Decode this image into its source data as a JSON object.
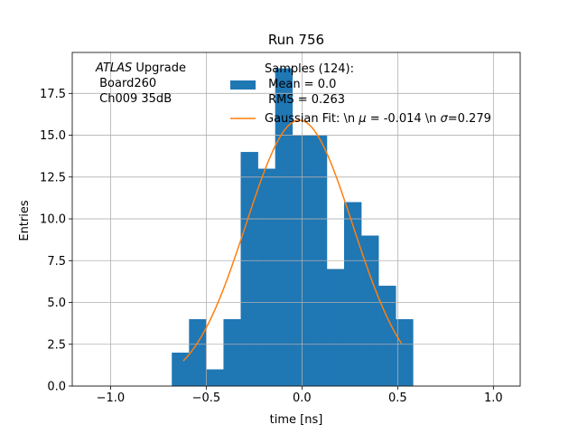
{
  "chart_data": {
    "type": "histogram",
    "title": "Run 756",
    "xlabel": "time [ns]",
    "ylabel": "Entries",
    "xlim": [
      -1.2,
      1.14
    ],
    "ylim": [
      0,
      19.95
    ],
    "xticks": [
      -1.0,
      -0.5,
      0.0,
      0.5,
      1.0
    ],
    "xtick_labels": [
      "−1.0",
      "−0.5",
      "0.0",
      "0.5",
      "1.0"
    ],
    "yticks": [
      0.0,
      2.5,
      5.0,
      7.5,
      10.0,
      12.5,
      15.0,
      17.5
    ],
    "ytick_labels": [
      "0.0",
      "2.5",
      "5.0",
      "7.5",
      "10.0",
      "12.5",
      "15.0",
      "17.5"
    ],
    "grid": true,
    "annotation": {
      "line1_italic": "ATLAS",
      "line1_rest": " Upgrade",
      "line2": " Board260",
      "line3": " Ch009 35dB"
    },
    "legend": {
      "placement": "upper-center",
      "hist_label_lines": [
        "Samples (124):",
        " Mean = 0.0",
        " RMS = 0.263"
      ],
      "fit_label_parts": [
        "Gaussian Fit: \\n ",
        "μ",
        " = -0.014 \\n ",
        "σ",
        "=0.279"
      ]
    },
    "histogram": {
      "bin_edges": [
        -0.68,
        -0.59,
        -0.5,
        -0.41,
        -0.32,
        -0.23,
        -0.14,
        -0.05,
        0.04,
        0.13,
        0.22,
        0.31,
        0.4,
        0.49,
        0.58
      ],
      "counts": [
        2,
        4,
        1,
        4,
        14,
        13,
        19,
        15,
        15,
        7,
        11,
        9,
        6,
        4
      ],
      "color": "#1f77b4"
    },
    "fit": {
      "type": "gaussian",
      "amplitude": 15.9,
      "mu": -0.014,
      "sigma": 0.279,
      "x_range": [
        -0.62,
        0.52
      ],
      "color": "#ff7f0e"
    }
  }
}
